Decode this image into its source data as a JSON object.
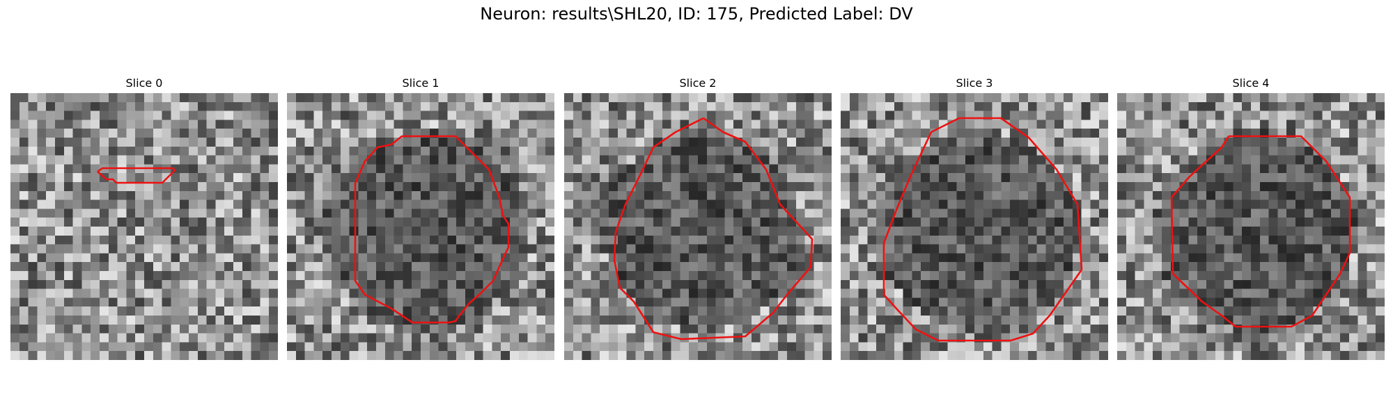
{
  "figure": {
    "title": "Neuron: results\\SHL20, ID: 175, Predicted Label: DV"
  },
  "contour_color": "#ee1111",
  "slices": [
    {
      "title": "Slice 0"
    },
    {
      "title": "Slice 1"
    },
    {
      "title": "Slice 2"
    },
    {
      "title": "Slice 3"
    },
    {
      "title": "Slice 4"
    }
  ]
}
